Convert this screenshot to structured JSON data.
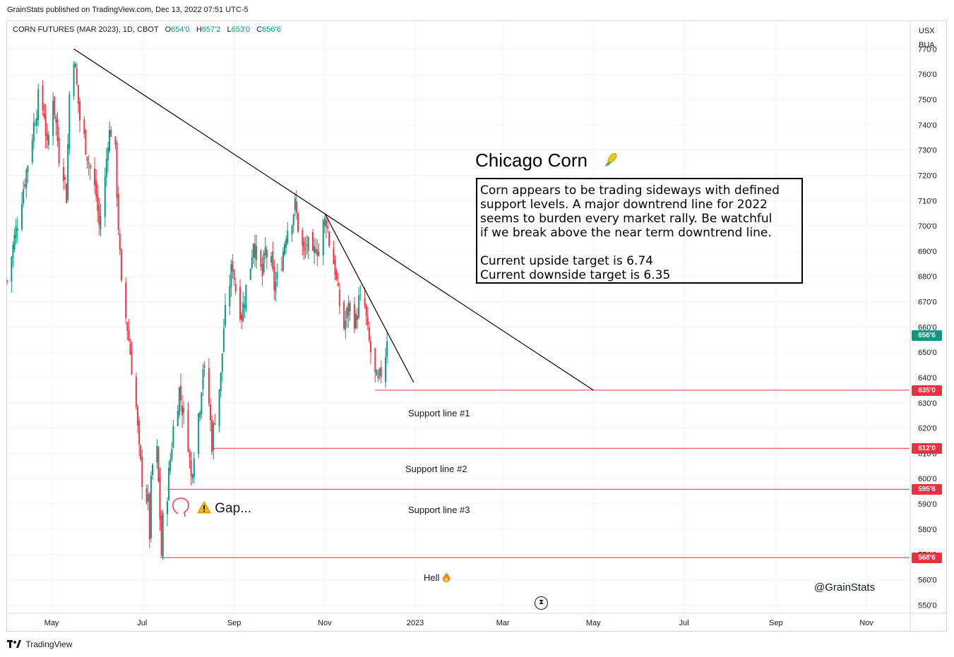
{
  "header": {
    "published": "GrainStats published on TradingView.com, Dec 13, 2022 07:51 UTC-5"
  },
  "legend": {
    "symbol": "CORN FUTURES (MAR 2023), 1D, CBOT",
    "open_label": "O",
    "open": "654'0",
    "high_label": "H",
    "high": "657'2",
    "low_label": "L",
    "low": "653'0",
    "close_label": "C",
    "close": "656'6"
  },
  "currency": {
    "line1": "USX",
    "line2": "BUA"
  },
  "annotation": {
    "title": "Chicago Corn",
    "title_icon": "corn-icon",
    "lines": [
      "Corn appears to be trading sideways with defined",
      "support levels. A major downtrend line for 2022",
      "seems to burden every market rally.  Be watchful",
      "if we break above the near term downtrend line."
    ],
    "targets": [
      "Current upside target is 6.74",
      "Current downside target is 6.35"
    ]
  },
  "labels": {
    "support1": "Support line #1",
    "support2": "Support line #2",
    "support3": "Support line #3",
    "gap": "Gap...",
    "gap_icon": "warning-icon",
    "hell": "Hell",
    "hell_icon": "fire-icon",
    "credit": "@GrainStats"
  },
  "footer": {
    "brand": "TradingView",
    "brand_icon": "tradingview-logo-icon",
    "replay_icon": "hourglass-icon"
  },
  "colors": {
    "up": "#089981",
    "down": "#f23645",
    "support": "#e8323f",
    "trend": "#000000",
    "last_price": "#089981",
    "grid": "#f0f3fa"
  },
  "chart_data": {
    "type": "candlestick",
    "title": "",
    "y_unit": "cents/bushel",
    "ylim": [
      547,
      781
    ],
    "y_ticks": [
      "770'0",
      "760'0",
      "750'0",
      "740'0",
      "730'0",
      "720'0",
      "710'0",
      "700'0",
      "690'0",
      "680'0",
      "670'0",
      "660'0",
      "650'0",
      "640'0",
      "630'0",
      "620'0",
      "610'0",
      "600'0",
      "590'0",
      "580'0",
      "570'0",
      "560'0",
      "550'0"
    ],
    "y_tick_values": [
      770,
      760,
      750,
      740,
      730,
      720,
      710,
      700,
      690,
      680,
      670,
      660,
      650,
      640,
      630,
      620,
      610,
      600,
      590,
      580,
      570,
      560,
      550
    ],
    "x_ticks": [
      "May",
      "Jul",
      "Sep",
      "Nov",
      "2023",
      "Mar",
      "May",
      "Jul",
      "Sep",
      "Nov"
    ],
    "x_tick_dates": [
      "2022-05-01",
      "2022-07-01",
      "2022-09-01",
      "2022-11-01",
      "2023-01-01",
      "2023-03-01",
      "2023-05-01",
      "2023-07-01",
      "2023-09-01",
      "2023-11-01"
    ],
    "x_range": [
      "2022-04-01",
      "2023-11-30"
    ],
    "last_price": {
      "value": 656.75,
      "label": "656'6"
    },
    "support_lines": [
      {
        "name": "Support line #1",
        "value": 635.0,
        "label": "635'0",
        "from": "2022-12-05"
      },
      {
        "name": "Support line #2",
        "value": 612.0,
        "label": "612'0",
        "from": "2022-08-18"
      },
      {
        "name": "Support line #3",
        "value": 595.75,
        "label": "595'6",
        "from": "2022-07-18"
      },
      {
        "name": "Hell",
        "value": 568.75,
        "label": "568'6",
        "from": "2022-07-13"
      }
    ],
    "trend_lines": [
      {
        "name": "major downtrend",
        "points": [
          [
            "2022-05-16",
            770
          ],
          [
            "2023-05-01",
            635
          ]
        ]
      },
      {
        "name": "near term downtrend",
        "points": [
          [
            "2022-11-01",
            705
          ],
          [
            "2022-12-31",
            638
          ]
        ]
      }
    ],
    "ohlc_waypoints": [
      [
        "2022-04-01",
        678
      ],
      [
        "2022-04-06",
        695
      ],
      [
        "2022-04-11",
        712
      ],
      [
        "2022-04-15",
        725
      ],
      [
        "2022-04-19",
        740
      ],
      [
        "2022-04-22",
        750
      ],
      [
        "2022-04-26",
        745
      ],
      [
        "2022-04-28",
        730
      ],
      [
        "2022-05-02",
        752
      ],
      [
        "2022-05-04",
        740
      ],
      [
        "2022-05-06",
        728
      ],
      [
        "2022-05-09",
        722
      ],
      [
        "2022-05-11",
        712
      ],
      [
        "2022-05-13",
        752
      ],
      [
        "2022-05-16",
        768
      ],
      [
        "2022-05-18",
        755
      ],
      [
        "2022-05-20",
        742
      ],
      [
        "2022-05-24",
        732
      ],
      [
        "2022-05-26",
        725
      ],
      [
        "2022-05-31",
        712
      ],
      [
        "2022-06-02",
        700
      ],
      [
        "2022-06-06",
        718
      ],
      [
        "2022-06-08",
        735
      ],
      [
        "2022-06-10",
        738
      ],
      [
        "2022-06-13",
        728
      ],
      [
        "2022-06-15",
        700
      ],
      [
        "2022-06-17",
        675
      ],
      [
        "2022-06-21",
        660
      ],
      [
        "2022-06-23",
        650
      ],
      [
        "2022-06-27",
        628
      ],
      [
        "2022-06-29",
        610
      ],
      [
        "2022-07-01",
        600
      ],
      [
        "2022-07-05",
        590
      ],
      [
        "2022-07-06",
        578
      ],
      [
        "2022-07-07",
        597
      ],
      [
        "2022-07-08",
        605
      ],
      [
        "2022-07-11",
        610
      ],
      [
        "2022-07-12",
        598
      ],
      [
        "2022-07-13",
        585
      ],
      [
        "2022-07-14",
        570
      ],
      [
        "2022-07-15",
        583
      ],
      [
        "2022-07-18",
        595
      ],
      [
        "2022-07-20",
        608
      ],
      [
        "2022-07-22",
        620
      ],
      [
        "2022-07-26",
        635
      ],
      [
        "2022-07-28",
        628
      ],
      [
        "2022-08-01",
        615
      ],
      [
        "2022-08-03",
        600
      ],
      [
        "2022-08-05",
        612
      ],
      [
        "2022-08-09",
        630
      ],
      [
        "2022-08-11",
        645
      ],
      [
        "2022-08-15",
        630
      ],
      [
        "2022-08-17",
        614
      ],
      [
        "2022-08-19",
        625
      ],
      [
        "2022-08-23",
        640
      ],
      [
        "2022-08-25",
        660
      ],
      [
        "2022-08-29",
        678
      ],
      [
        "2022-08-31",
        685
      ],
      [
        "2022-09-02",
        675
      ],
      [
        "2022-09-06",
        665
      ],
      [
        "2022-09-08",
        672
      ],
      [
        "2022-09-12",
        685
      ],
      [
        "2022-09-14",
        695
      ],
      [
        "2022-09-16",
        688
      ],
      [
        "2022-09-20",
        680
      ],
      [
        "2022-09-22",
        690
      ],
      [
        "2022-09-26",
        684
      ],
      [
        "2022-09-28",
        676
      ],
      [
        "2022-10-01",
        680
      ],
      [
        "2022-10-04",
        690
      ],
      [
        "2022-10-06",
        698
      ],
      [
        "2022-10-10",
        704
      ],
      [
        "2022-10-12",
        708
      ],
      [
        "2022-10-14",
        700
      ],
      [
        "2022-10-18",
        688
      ],
      [
        "2022-10-20",
        693
      ],
      [
        "2022-10-24",
        686
      ],
      [
        "2022-10-26",
        693
      ],
      [
        "2022-10-28",
        690
      ],
      [
        "2022-10-31",
        700
      ],
      [
        "2022-11-02",
        703
      ],
      [
        "2022-11-04",
        694
      ],
      [
        "2022-11-08",
        683
      ],
      [
        "2022-11-10",
        672
      ],
      [
        "2022-11-14",
        660
      ],
      [
        "2022-11-16",
        665
      ],
      [
        "2022-11-18",
        668
      ],
      [
        "2022-11-22",
        662
      ],
      [
        "2022-11-24",
        670
      ],
      [
        "2022-11-28",
        668
      ],
      [
        "2022-11-30",
        657
      ],
      [
        "2022-12-02",
        650
      ],
      [
        "2022-12-05",
        640
      ],
      [
        "2022-12-07",
        637
      ],
      [
        "2022-12-09",
        642
      ],
      [
        "2022-12-12",
        650
      ],
      [
        "2022-12-13",
        656.75
      ]
    ]
  }
}
